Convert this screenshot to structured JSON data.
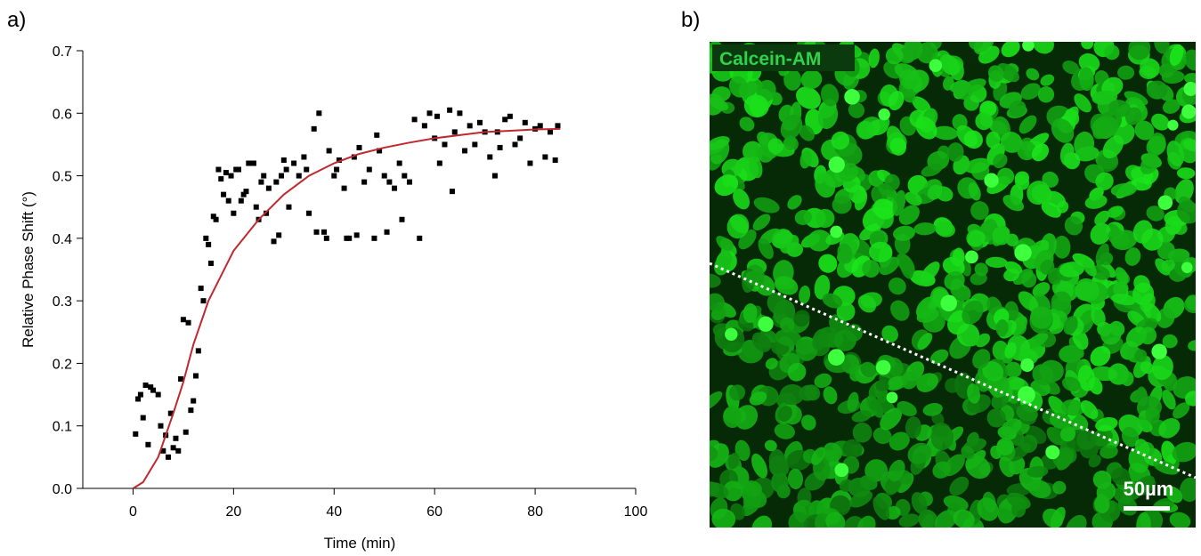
{
  "panels": {
    "a": "a)",
    "b": "b)"
  },
  "image": {
    "stain_label": "Calcein-AM",
    "scale_label": "50µm"
  },
  "chart_data": {
    "type": "scatter",
    "x_label": "Time (min)",
    "y_label": "Relative Phase Shift (°)",
    "xlim": [
      -10,
      100
    ],
    "xticks": [
      0,
      20,
      40,
      60,
      80,
      100
    ],
    "ylim": [
      0,
      0.7
    ],
    "yticks": [
      {
        "value": 0,
        "label": "0.0"
      },
      0.1,
      0.2,
      0.3,
      0.4,
      0.5,
      0.6,
      0.7
    ],
    "series": [
      {
        "type": "scatter",
        "color": "#000000",
        "x": [
          0.5,
          1,
          1.5,
          2,
          2.5,
          3,
          3.5,
          4,
          5,
          5.5,
          6,
          6.5,
          7,
          7.5,
          8,
          8.5,
          9,
          9.5,
          10,
          10.5,
          11,
          11.5,
          12,
          12.5,
          13,
          13.5,
          14,
          14.5,
          15,
          15.5,
          16,
          16.5,
          17,
          17.5,
          18,
          18.5,
          19,
          19.5,
          20,
          20.5,
          21,
          21.5,
          22,
          22.5,
          23,
          24,
          24.5,
          25,
          25.5,
          26,
          26.5,
          27,
          28,
          28.5,
          29,
          29.5,
          30,
          30.5,
          31,
          32,
          33,
          34,
          34.5,
          35,
          36,
          36.5,
          37,
          38,
          38.5,
          39,
          40,
          40.5,
          41,
          42,
          42.5,
          43,
          44,
          44.5,
          45,
          46,
          47,
          48,
          48.5,
          49,
          50,
          50.5,
          51,
          52,
          53,
          53.5,
          54,
          55,
          56,
          57,
          58,
          59,
          60,
          60.5,
          61,
          62,
          63,
          63.5,
          64,
          65,
          66,
          67,
          68,
          69,
          70,
          71,
          72,
          72.5,
          73,
          74,
          75,
          76,
          77,
          78,
          79,
          80,
          81,
          82,
          83,
          84,
          84.5
        ],
        "values": [
          0.087,
          0.143,
          0.15,
          0.113,
          0.165,
          0.07,
          0.162,
          0.157,
          0.15,
          0.1,
          0.06,
          0.085,
          0.05,
          0.12,
          0.065,
          0.08,
          0.06,
          0.175,
          0.27,
          0.09,
          0.265,
          0.125,
          0.14,
          0.18,
          0.22,
          0.32,
          0.3,
          0.4,
          0.39,
          0.36,
          0.435,
          0.43,
          0.51,
          0.495,
          0.47,
          0.505,
          0.46,
          0.5,
          0.44,
          0.51,
          0.51,
          0.46,
          0.47,
          0.475,
          0.52,
          0.52,
          0.45,
          0.43,
          0.49,
          0.5,
          0.44,
          0.48,
          0.395,
          0.49,
          0.405,
          0.5,
          0.525,
          0.51,
          0.45,
          0.52,
          0.5,
          0.53,
          0.51,
          0.44,
          0.575,
          0.41,
          0.6,
          0.41,
          0.4,
          0.54,
          0.5,
          0.51,
          0.525,
          0.48,
          0.4,
          0.4,
          0.53,
          0.405,
          0.545,
          0.49,
          0.51,
          0.4,
          0.565,
          0.54,
          0.5,
          0.41,
          0.49,
          0.48,
          0.52,
          0.43,
          0.5,
          0.49,
          0.59,
          0.4,
          0.58,
          0.6,
          0.56,
          0.595,
          0.52,
          0.55,
          0.605,
          0.475,
          0.57,
          0.6,
          0.54,
          0.58,
          0.55,
          0.585,
          0.57,
          0.53,
          0.5,
          0.57,
          0.545,
          0.59,
          0.595,
          0.55,
          0.56,
          0.585,
          0.52,
          0.575,
          0.58,
          0.53,
          0.57,
          0.525,
          0.58
        ]
      },
      {
        "type": "line",
        "color": "#c0282d",
        "x": [
          0,
          2,
          5,
          8,
          10,
          12,
          15,
          20,
          25,
          30,
          35,
          40,
          45,
          50,
          55,
          60,
          65,
          70,
          75,
          80,
          85
        ],
        "values": [
          0,
          0.01,
          0.05,
          0.12,
          0.17,
          0.23,
          0.3,
          0.38,
          0.43,
          0.47,
          0.5,
          0.52,
          0.535,
          0.545,
          0.553,
          0.56,
          0.565,
          0.57,
          0.572,
          0.574,
          0.575
        ]
      }
    ]
  }
}
